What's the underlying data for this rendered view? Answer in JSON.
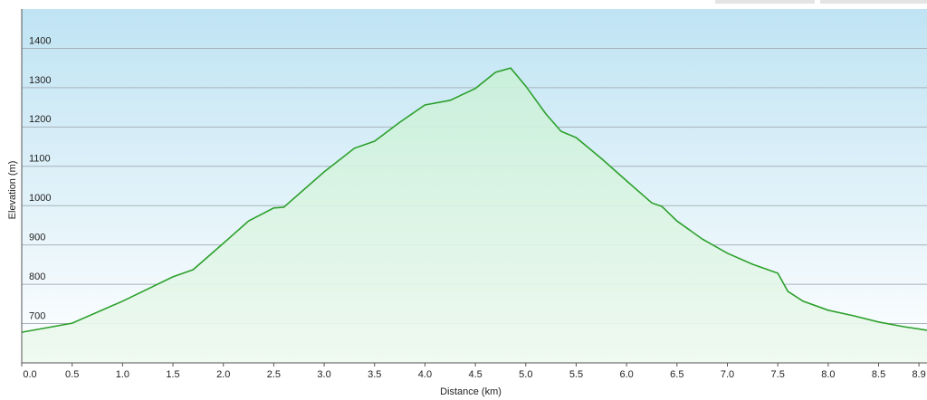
{
  "chart_data": {
    "type": "area",
    "xlabel": "Distance  (km)",
    "ylabel": "Elevation (m)",
    "x": [
      0,
      0.5,
      1.0,
      1.5,
      1.7,
      2.0,
      2.25,
      2.5,
      2.6,
      3.0,
      3.3,
      3.5,
      3.75,
      4.0,
      4.25,
      4.5,
      4.7,
      4.85,
      5.0,
      5.2,
      5.35,
      5.5,
      5.75,
      6.0,
      6.25,
      6.35,
      6.5,
      6.75,
      7.0,
      7.25,
      7.5,
      7.6,
      7.75,
      8.0,
      8.25,
      8.5,
      8.75,
      8.98
    ],
    "values": [
      678,
      701,
      757,
      819,
      837,
      904,
      961,
      994,
      996,
      1086,
      1146,
      1164,
      1212,
      1256,
      1268,
      1298,
      1339,
      1350,
      1304,
      1233,
      1189,
      1173,
      1120,
      1063,
      1007,
      998,
      961,
      915,
      879,
      851,
      828,
      782,
      757,
      734,
      720,
      704,
      692,
      683
    ],
    "color": "#2ca02c",
    "xlim": [
      0,
      8.98
    ],
    "ylim": [
      600,
      1500
    ],
    "xticks": [
      {
        "value": 0,
        "label": "0.0"
      },
      0.5,
      {
        "value": 1,
        "label": "1.0"
      },
      1.5,
      {
        "value": 2,
        "label": "2.0"
      },
      2.5,
      {
        "value": 3,
        "label": "3.0"
      },
      3.5,
      {
        "value": 4,
        "label": "4.0"
      },
      4.5,
      {
        "value": 5,
        "label": "5.0"
      },
      5.5,
      {
        "value": 6,
        "label": "6.0"
      },
      6.5,
      {
        "value": 7,
        "label": "7.0"
      },
      7.5,
      {
        "value": 8,
        "label": "8.0"
      },
      8.5,
      8.9
    ],
    "yticks": [
      700,
      800,
      900,
      1000,
      1100,
      1200,
      1300,
      1400
    ],
    "grid": true
  }
}
